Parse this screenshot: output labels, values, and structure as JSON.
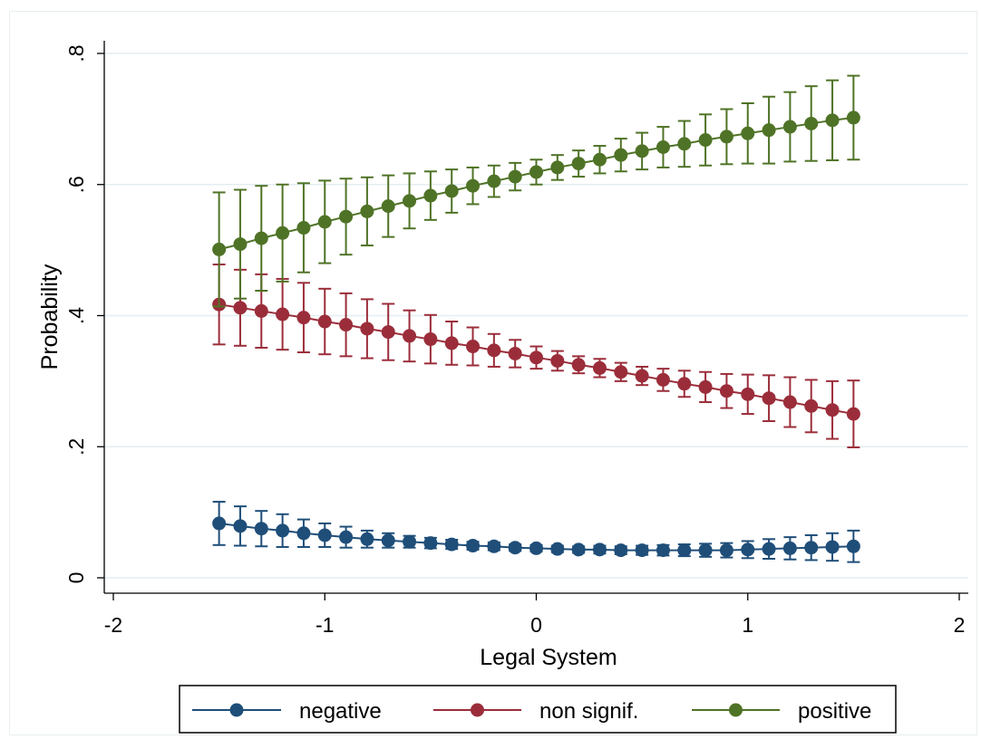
{
  "chart_data": {
    "type": "line",
    "xlabel": "Legal System",
    "ylabel": "Probability",
    "xlim": [
      -2,
      2
    ],
    "ylim": [
      0,
      0.8
    ],
    "x_ticks": [
      -2,
      -1,
      0,
      1,
      2
    ],
    "x_tick_labels": [
      "-2",
      "-1",
      "0",
      "1",
      "2"
    ],
    "y_ticks": [
      0,
      0.2,
      0.4,
      0.6,
      0.8
    ],
    "y_tick_labels": [
      "0",
      ".2",
      ".4",
      ".6",
      ".8"
    ],
    "grid": "horizontal",
    "legend_position": "bottom",
    "x": [
      -1.5,
      -1.4,
      -1.3,
      -1.2,
      -1.1,
      -1.0,
      -0.9,
      -0.8,
      -0.7,
      -0.6,
      -0.5,
      -0.4,
      -0.3,
      -0.2,
      -0.1,
      0.0,
      0.1,
      0.2,
      0.3,
      0.4,
      0.5,
      0.6,
      0.7,
      0.8,
      0.9,
      1.0,
      1.1,
      1.2,
      1.3,
      1.4,
      1.5
    ],
    "series": [
      {
        "name": "negative",
        "color": "#1f4e79",
        "values": [
          0.083,
          0.079,
          0.075,
          0.072,
          0.068,
          0.065,
          0.062,
          0.059,
          0.057,
          0.055,
          0.053,
          0.051,
          0.049,
          0.048,
          0.046,
          0.045,
          0.044,
          0.043,
          0.043,
          0.042,
          0.042,
          0.042,
          0.042,
          0.042,
          0.042,
          0.043,
          0.044,
          0.045,
          0.046,
          0.047,
          0.048
        ],
        "lower": [
          0.05,
          0.049,
          0.048,
          0.047,
          0.047,
          0.047,
          0.046,
          0.046,
          0.046,
          0.046,
          0.045,
          0.044,
          0.043,
          0.042,
          0.041,
          0.04,
          0.039,
          0.038,
          0.037,
          0.036,
          0.035,
          0.034,
          0.033,
          0.032,
          0.031,
          0.03,
          0.029,
          0.028,
          0.027,
          0.026,
          0.024
        ],
        "upper": [
          0.116,
          0.109,
          0.102,
          0.097,
          0.089,
          0.083,
          0.078,
          0.072,
          0.068,
          0.064,
          0.061,
          0.058,
          0.055,
          0.054,
          0.051,
          0.05,
          0.049,
          0.048,
          0.049,
          0.048,
          0.049,
          0.05,
          0.051,
          0.052,
          0.053,
          0.056,
          0.059,
          0.062,
          0.065,
          0.068,
          0.072
        ]
      },
      {
        "name": "non signif.",
        "color": "#9b2d3a",
        "values": [
          0.417,
          0.412,
          0.407,
          0.402,
          0.397,
          0.391,
          0.386,
          0.38,
          0.375,
          0.369,
          0.364,
          0.358,
          0.353,
          0.347,
          0.342,
          0.336,
          0.331,
          0.325,
          0.32,
          0.314,
          0.308,
          0.302,
          0.296,
          0.291,
          0.285,
          0.28,
          0.274,
          0.268,
          0.262,
          0.256,
          0.25
        ],
        "lower": [
          0.356,
          0.354,
          0.351,
          0.348,
          0.344,
          0.341,
          0.338,
          0.335,
          0.332,
          0.33,
          0.327,
          0.325,
          0.324,
          0.322,
          0.321,
          0.319,
          0.316,
          0.312,
          0.306,
          0.3,
          0.294,
          0.285,
          0.276,
          0.268,
          0.259,
          0.25,
          0.239,
          0.23,
          0.222,
          0.212,
          0.199
        ],
        "upper": [
          0.478,
          0.47,
          0.463,
          0.456,
          0.45,
          0.441,
          0.434,
          0.425,
          0.418,
          0.408,
          0.401,
          0.391,
          0.382,
          0.372,
          0.363,
          0.353,
          0.346,
          0.338,
          0.334,
          0.328,
          0.322,
          0.319,
          0.316,
          0.314,
          0.311,
          0.31,
          0.309,
          0.306,
          0.302,
          0.3,
          0.301
        ]
      },
      {
        "name": "positive",
        "color": "#4f7326",
        "values": [
          0.501,
          0.509,
          0.518,
          0.526,
          0.534,
          0.543,
          0.551,
          0.559,
          0.567,
          0.575,
          0.583,
          0.59,
          0.598,
          0.605,
          0.612,
          0.619,
          0.626,
          0.632,
          0.638,
          0.645,
          0.651,
          0.657,
          0.662,
          0.668,
          0.673,
          0.678,
          0.683,
          0.688,
          0.693,
          0.698,
          0.702
        ],
        "lower": [
          0.414,
          0.426,
          0.438,
          0.452,
          0.466,
          0.48,
          0.493,
          0.507,
          0.52,
          0.533,
          0.546,
          0.557,
          0.57,
          0.581,
          0.591,
          0.6,
          0.607,
          0.612,
          0.617,
          0.62,
          0.623,
          0.626,
          0.627,
          0.629,
          0.631,
          0.632,
          0.632,
          0.635,
          0.636,
          0.637,
          0.638
        ],
        "upper": [
          0.588,
          0.592,
          0.598,
          0.6,
          0.602,
          0.606,
          0.609,
          0.611,
          0.614,
          0.617,
          0.62,
          0.623,
          0.626,
          0.629,
          0.633,
          0.638,
          0.645,
          0.652,
          0.659,
          0.67,
          0.679,
          0.688,
          0.697,
          0.707,
          0.715,
          0.724,
          0.734,
          0.741,
          0.75,
          0.759,
          0.766
        ]
      }
    ]
  }
}
